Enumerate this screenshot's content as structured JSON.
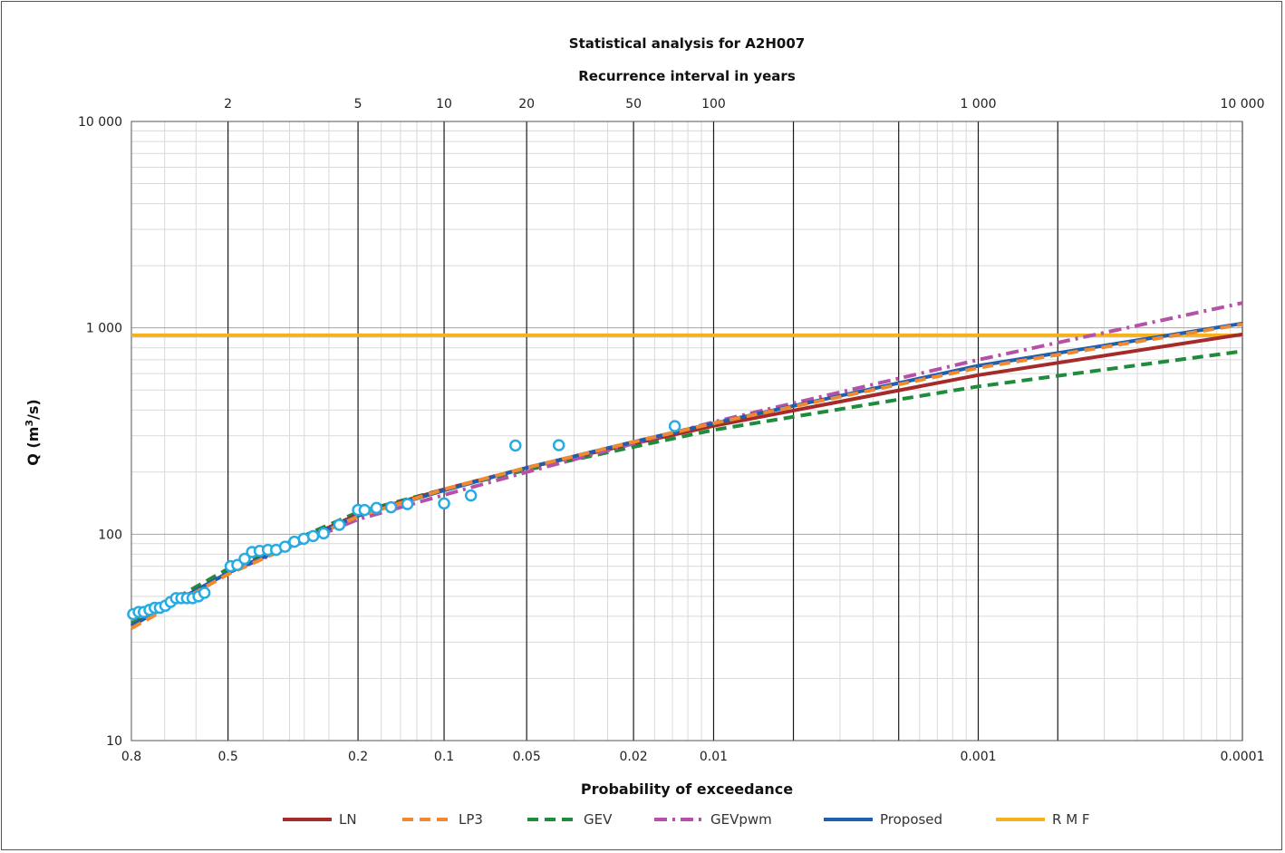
{
  "chart_data": {
    "type": "line",
    "title": "Statistical analysis for A2H007",
    "top_axis_label": "Recurrence interval in years",
    "xlabel": "Probability of exceedance",
    "ylabel_main": "Q (m",
    "ylabel_sup": "3",
    "ylabel_tail": "/s)",
    "x_scale": "gumbel-probability (exceedance, decreasing to the right)",
    "xlim": [
      0.8,
      0.0001
    ],
    "y_scale": "log",
    "ylim": [
      10,
      10000
    ],
    "x_ticks": [
      {
        "p": 0.8,
        "label": "0.8"
      },
      {
        "p": 0.5,
        "label": "0.5"
      },
      {
        "p": 0.2,
        "label": "0.2"
      },
      {
        "p": 0.1,
        "label": "0.1"
      },
      {
        "p": 0.05,
        "label": "0.05"
      },
      {
        "p": 0.02,
        "label": "0.02"
      },
      {
        "p": 0.01,
        "label": "0.01"
      },
      {
        "p": 0.001,
        "label": "0.001"
      },
      {
        "p": 0.0001,
        "label": "0.0001"
      }
    ],
    "top_ticks": [
      {
        "T": 2,
        "label": "2"
      },
      {
        "T": 5,
        "label": "5"
      },
      {
        "T": 10,
        "label": "10"
      },
      {
        "T": 20,
        "label": "20"
      },
      {
        "T": 50,
        "label": "50"
      },
      {
        "T": 100,
        "label": "100"
      },
      {
        "T": 1000,
        "label": "1 000"
      },
      {
        "T": 10000,
        "label": "10 000"
      }
    ],
    "y_ticks": [
      {
        "v": 10,
        "label": "10"
      },
      {
        "v": 100,
        "label": "100"
      },
      {
        "v": 1000,
        "label": "1 000"
      },
      {
        "v": 10000,
        "label": "10 000"
      }
    ],
    "extra_vertical_lines_T": [
      200,
      500,
      2000
    ],
    "series": [
      {
        "name": "LN",
        "color": "#a52a2a",
        "dash": "solid",
        "x": [
          0.8,
          0.5,
          0.2,
          0.1,
          0.05,
          0.02,
          0.01,
          0.001,
          0.0001
        ],
        "values": [
          36,
          65,
          125,
          165,
          210,
          275,
          335,
          590,
          930
        ]
      },
      {
        "name": "LP3",
        "color": "#f08a30",
        "dash": "dash",
        "x": [
          0.8,
          0.5,
          0.2,
          0.1,
          0.05,
          0.02,
          0.01,
          0.001,
          0.0001
        ],
        "values": [
          35,
          64,
          122,
          165,
          210,
          280,
          345,
          640,
          1040
        ]
      },
      {
        "name": "GEV",
        "color": "#1e8c3a",
        "dash": "dash",
        "x": [
          0.8,
          0.5,
          0.2,
          0.1,
          0.05,
          0.02,
          0.01,
          0.001,
          0.0001
        ],
        "values": [
          37,
          68,
          128,
          165,
          205,
          265,
          320,
          520,
          770
        ]
      },
      {
        "name": "GEVpwm",
        "color": "#b552a8",
        "dash": "dashdot",
        "x": [
          0.8,
          0.5,
          0.2,
          0.1,
          0.05,
          0.02,
          0.01,
          0.001,
          0.0001
        ],
        "values": [
          36,
          65,
          118,
          155,
          200,
          275,
          350,
          700,
          1320
        ]
      },
      {
        "name": "Proposed",
        "color": "#1f5fb0",
        "dash": "solid",
        "x": [
          0.8,
          0.5,
          0.2,
          0.1,
          0.05,
          0.02,
          0.01,
          0.001,
          0.0001
        ],
        "values": [
          36,
          65,
          123,
          163,
          210,
          280,
          345,
          655,
          1050
        ]
      },
      {
        "name": "R M F",
        "color": "#f5b21e",
        "dash": "solid",
        "x": [
          0.8,
          0.0001
        ],
        "values": [
          920,
          920
        ]
      }
    ],
    "observed": {
      "color": "#29abe2",
      "points": [
        {
          "p": 0.795,
          "q": 41
        },
        {
          "p": 0.779,
          "q": 42
        },
        {
          "p": 0.764,
          "q": 42
        },
        {
          "p": 0.747,
          "q": 43
        },
        {
          "p": 0.731,
          "q": 44
        },
        {
          "p": 0.715,
          "q": 44
        },
        {
          "p": 0.698,
          "q": 45
        },
        {
          "p": 0.681,
          "q": 47
        },
        {
          "p": 0.664,
          "q": 49
        },
        {
          "p": 0.647,
          "q": 49
        },
        {
          "p": 0.629,
          "q": 49
        },
        {
          "p": 0.611,
          "q": 49
        },
        {
          "p": 0.592,
          "q": 50
        },
        {
          "p": 0.573,
          "q": 52
        },
        {
          "p": 0.492,
          "q": 70
        },
        {
          "p": 0.472,
          "q": 71
        },
        {
          "p": 0.451,
          "q": 76
        },
        {
          "p": 0.43,
          "q": 82
        },
        {
          "p": 0.409,
          "q": 83
        },
        {
          "p": 0.387,
          "q": 84
        },
        {
          "p": 0.366,
          "q": 84
        },
        {
          "p": 0.344,
          "q": 87
        },
        {
          "p": 0.322,
          "q": 92
        },
        {
          "p": 0.301,
          "q": 95
        },
        {
          "p": 0.281,
          "q": 98
        },
        {
          "p": 0.26,
          "q": 101
        },
        {
          "p": 0.231,
          "q": 111
        },
        {
          "p": 0.2,
          "q": 131
        },
        {
          "p": 0.19,
          "q": 131
        },
        {
          "p": 0.173,
          "q": 134
        },
        {
          "p": 0.154,
          "q": 135
        },
        {
          "p": 0.135,
          "q": 140
        },
        {
          "p": 0.1,
          "q": 141
        },
        {
          "p": 0.08,
          "q": 154
        },
        {
          "p": 0.055,
          "q": 269
        },
        {
          "p": 0.038,
          "q": 270
        },
        {
          "p": 0.014,
          "q": 334
        }
      ]
    },
    "legend_position": "bottom",
    "grid": true
  }
}
